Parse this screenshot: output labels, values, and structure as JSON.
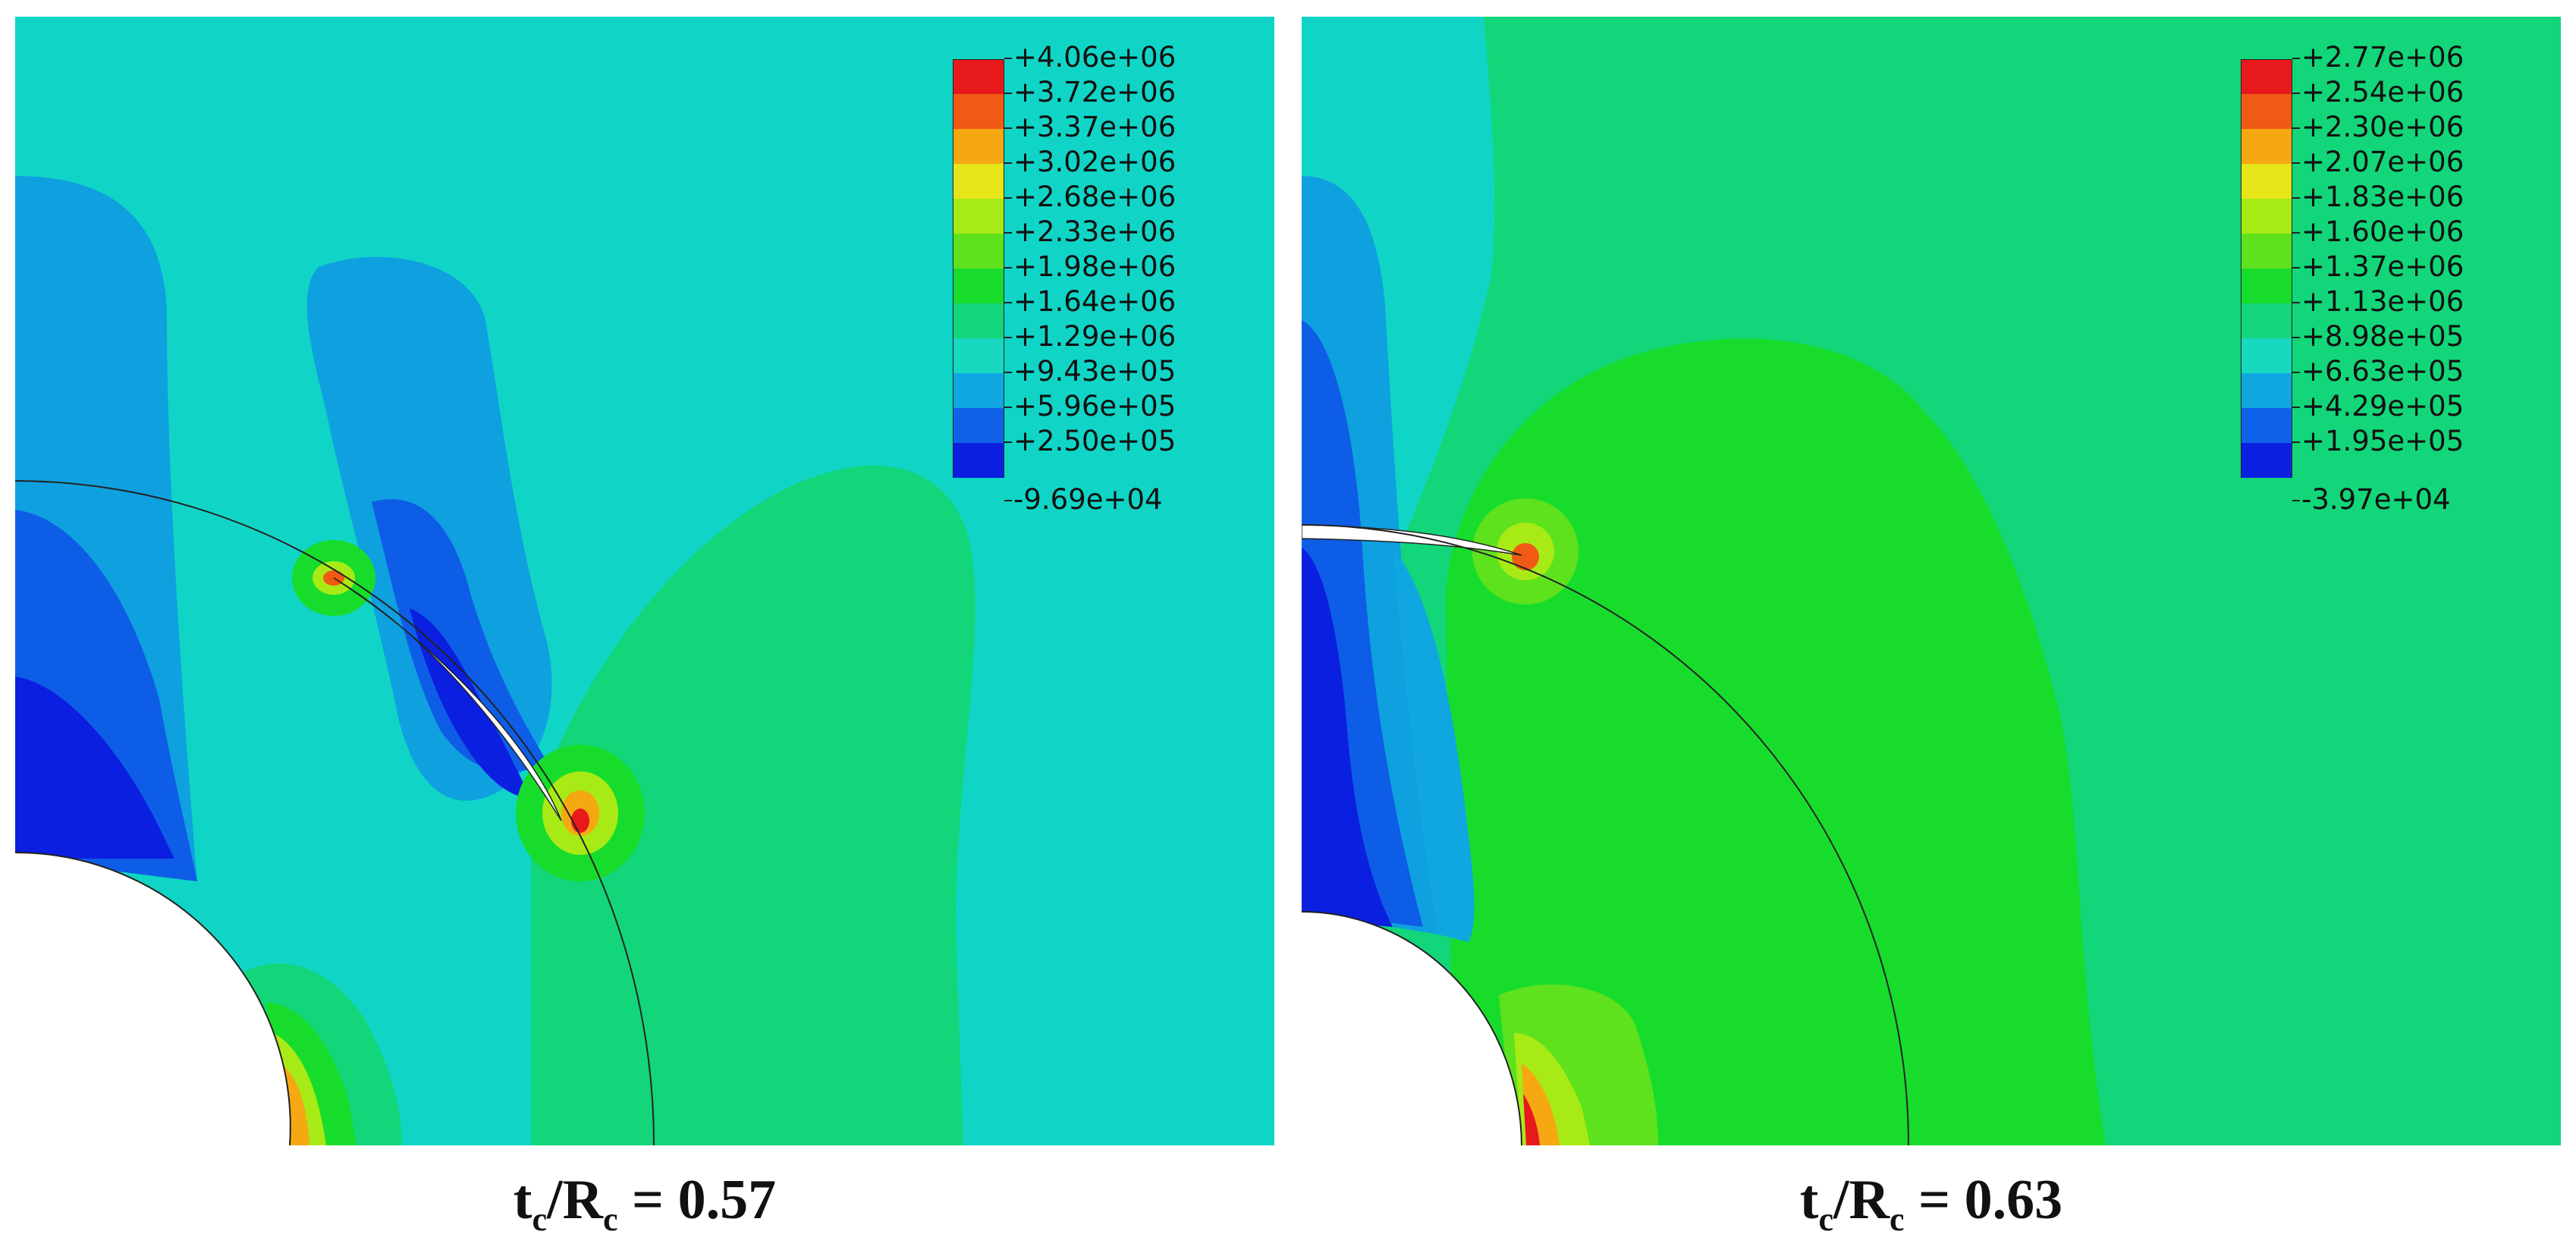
{
  "panels": [
    {
      "id": "left",
      "caption": "tc/Rc = 0.57",
      "caption_parts": {
        "t": "t",
        "sub1": "c",
        "slash": "/R",
        "sub2": "c",
        "eq": " = 0.57"
      },
      "legend": [
        "+4.06e+06",
        "+3.72e+06",
        "+3.37e+06",
        "+3.02e+06",
        "+2.68e+06",
        "+2.33e+06",
        "+1.98e+06",
        "+1.64e+06",
        "+1.29e+06",
        "+9.43e+05",
        "+5.96e+05",
        "+2.50e+05",
        "-9.69e+04"
      ]
    },
    {
      "id": "right",
      "caption": "tc/Rc = 0.63",
      "caption_parts": {
        "t": "t",
        "sub1": "c",
        "slash": "/R",
        "sub2": "c",
        "eq": " = 0.63"
      },
      "legend": [
        "+2.77e+06",
        "+2.54e+06",
        "+2.30e+06",
        "+2.07e+06",
        "+1.83e+06",
        "+1.60e+06",
        "+1.37e+06",
        "+1.13e+06",
        "+8.98e+05",
        "+6.63e+05",
        "+4.29e+05",
        "+1.95e+05",
        "-3.97e+04"
      ]
    }
  ],
  "colors": {
    "legend_bands": [
      "#e8191c",
      "#f05a14",
      "#f5a812",
      "#e6e51a",
      "#a8ea16",
      "#5ee21e",
      "#18dc2c",
      "#13d67b",
      "#18d9c0",
      "#10a7e0",
      "#0f62e8",
      "#0b1fe0"
    ],
    "background_left": "#10d5c6",
    "background_right": "#12d679"
  }
}
